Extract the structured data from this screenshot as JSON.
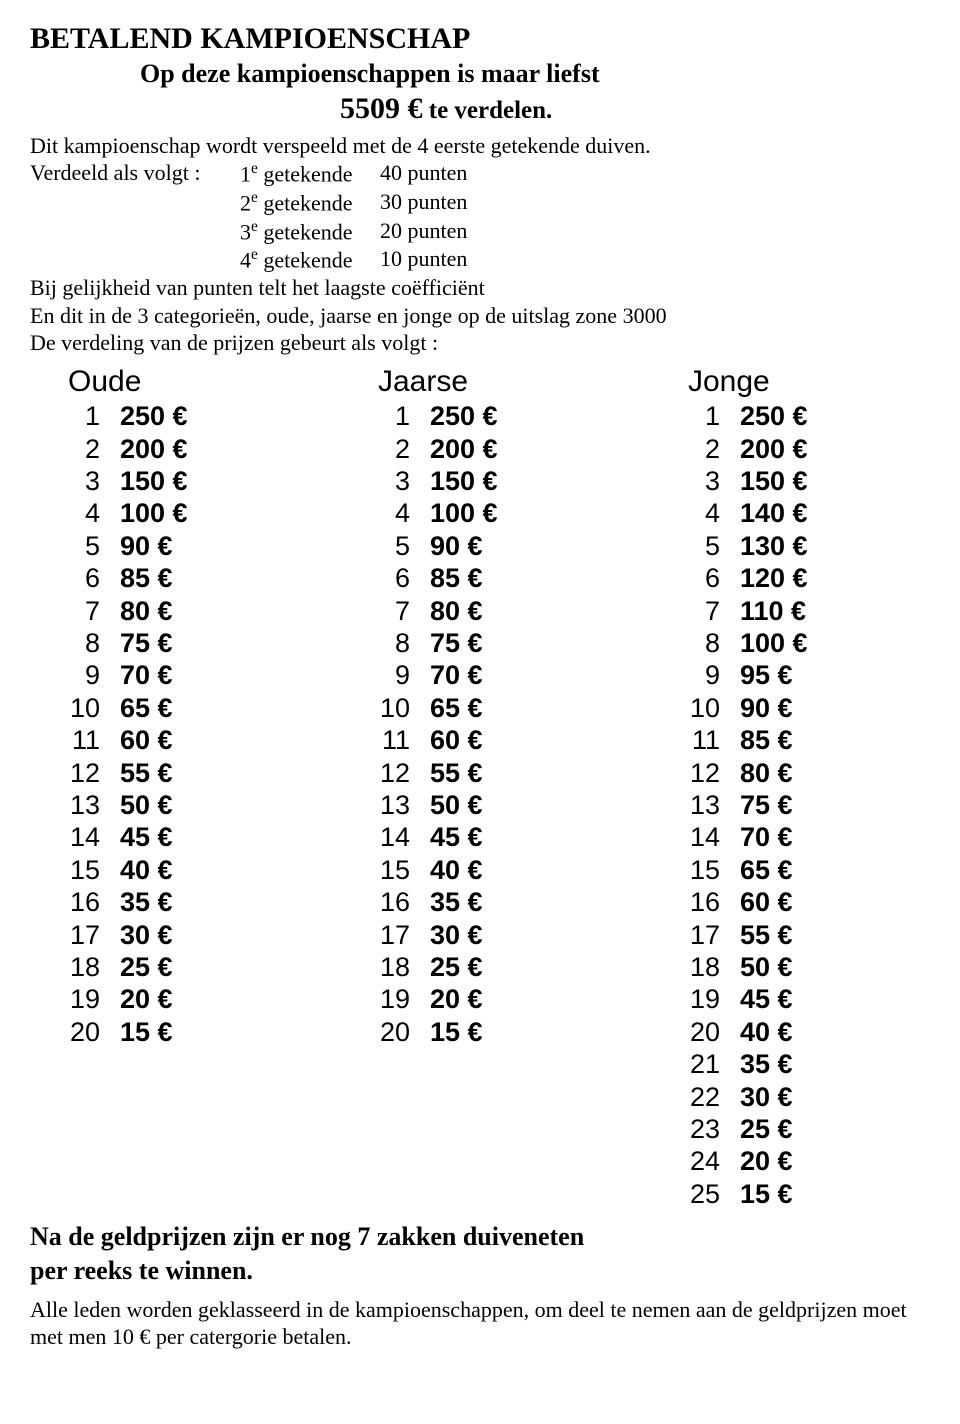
{
  "header": {
    "title": "BETALEND KAMPIOENSCHAP",
    "subtitle": "Op deze kampioenschappen is maar liefst",
    "amount": "5509 €",
    "amount_suffix": " te verdelen.",
    "intro": "Dit kampioenschap wordt verspeeld met de 4 eerste getekende duiven."
  },
  "verdeeld": {
    "label": "Verdeeld als volgt :",
    "rows": [
      {
        "rank": "1",
        "sup": "e",
        "word": " getekende",
        "pts": "40 punten"
      },
      {
        "rank": "2",
        "sup": "e",
        "word": " getekende",
        "pts": "30 punten"
      },
      {
        "rank": "3",
        "sup": "e",
        "word": " getekende",
        "pts": "20 punten"
      },
      {
        "rank": "4",
        "sup": "e",
        "word": " getekende",
        "pts": "10 punten"
      }
    ],
    "line1": "Bij gelijkheid van punten telt het laagste coëfficiënt",
    "line2": "En dit in de 3 categorieën, oude, jaarse en jonge op de uitslag zone 3000",
    "line3": "De verdeling van de prijzen gebeurt als volgt :"
  },
  "columns": {
    "oude": {
      "title": "Oude",
      "rows": [
        [
          1,
          "250 €"
        ],
        [
          2,
          "200 €"
        ],
        [
          3,
          "150 €"
        ],
        [
          4,
          "100 €"
        ],
        [
          5,
          "90 €"
        ],
        [
          6,
          "85 €"
        ],
        [
          7,
          "80 €"
        ],
        [
          8,
          "75 €"
        ],
        [
          9,
          "70 €"
        ],
        [
          10,
          "65 €"
        ],
        [
          11,
          "60 €"
        ],
        [
          12,
          "55 €"
        ],
        [
          13,
          "50 €"
        ],
        [
          14,
          "45 €"
        ],
        [
          15,
          "40 €"
        ],
        [
          16,
          "35 €"
        ],
        [
          17,
          "30 €"
        ],
        [
          18,
          "25 €"
        ],
        [
          19,
          "20 €"
        ],
        [
          20,
          "15 €"
        ]
      ]
    },
    "jaarse": {
      "title": "Jaarse",
      "rows": [
        [
          1,
          "250 €"
        ],
        [
          2,
          "200 €"
        ],
        [
          3,
          "150 €"
        ],
        [
          4,
          "100 €"
        ],
        [
          5,
          "90 €"
        ],
        [
          6,
          "85 €"
        ],
        [
          7,
          "80 €"
        ],
        [
          8,
          "75 €"
        ],
        [
          9,
          "70 €"
        ],
        [
          10,
          "65 €"
        ],
        [
          11,
          "60 €"
        ],
        [
          12,
          "55 €"
        ],
        [
          13,
          "50 €"
        ],
        [
          14,
          "45 €"
        ],
        [
          15,
          "40 €"
        ],
        [
          16,
          "35 €"
        ],
        [
          17,
          "30 €"
        ],
        [
          18,
          "25 €"
        ],
        [
          19,
          "20 €"
        ],
        [
          20,
          "15 €"
        ]
      ]
    },
    "jonge": {
      "title": "Jonge",
      "rows": [
        [
          1,
          "250 €"
        ],
        [
          2,
          "200 €"
        ],
        [
          3,
          "150 €"
        ],
        [
          4,
          "140 €"
        ],
        [
          5,
          "130 €"
        ],
        [
          6,
          "120 €"
        ],
        [
          7,
          "110 €"
        ],
        [
          8,
          "100 €"
        ],
        [
          9,
          "95 €"
        ],
        [
          10,
          "90 €"
        ],
        [
          11,
          "85 €"
        ],
        [
          12,
          "80 €"
        ],
        [
          13,
          "75 €"
        ],
        [
          14,
          "70 €"
        ],
        [
          15,
          "65 €"
        ],
        [
          16,
          "60 €"
        ],
        [
          17,
          "55 €"
        ],
        [
          18,
          "50 €"
        ],
        [
          19,
          "45 €"
        ],
        [
          20,
          "40 €"
        ],
        [
          21,
          "35 €"
        ],
        [
          22,
          "30 €"
        ],
        [
          23,
          "25 €"
        ],
        [
          24,
          "20 €"
        ],
        [
          25,
          "15 €"
        ]
      ]
    }
  },
  "bottom_note": "Na de geldprijzen zijn er nog 7 zakken duiveneten per reeks te winnen.",
  "footer": "Alle leden worden geklasseerd in de kampioenschappen, om deel te nemen aan de geldprijzen moet met men 10 € per catergorie betalen."
}
